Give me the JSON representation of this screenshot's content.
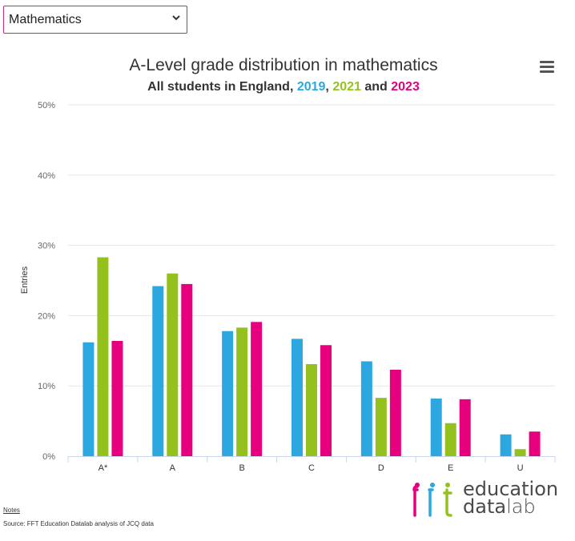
{
  "selector": {
    "value": "Mathematics",
    "icon": "chevron-down-icon"
  },
  "menu": {
    "icon": "hamburger-menu-icon"
  },
  "chart_data": {
    "type": "bar",
    "title": "A-Level grade distribution in mathematics",
    "subtitle": {
      "prefix": "All students in England, ",
      "sep1": ", ",
      "sep2": " and ",
      "years": [
        "2019",
        "2021",
        "2023"
      ]
    },
    "ylabel": "Entries",
    "xlabel": "",
    "ylim": [
      0,
      50
    ],
    "yticks": [
      0,
      10,
      20,
      30,
      40,
      50
    ],
    "ytick_labels": [
      "0%",
      "10%",
      "20%",
      "30%",
      "40%",
      "50%"
    ],
    "grid": true,
    "categories": [
      "A*",
      "A",
      "B",
      "C",
      "D",
      "E",
      "U"
    ],
    "series": [
      {
        "name": "2019",
        "color": "#2ca7df",
        "values": [
          16.2,
          24.2,
          17.8,
          16.7,
          13.5,
          8.2,
          3.1
        ]
      },
      {
        "name": "2021",
        "color": "#95c11f",
        "values": [
          28.3,
          26.0,
          18.3,
          13.1,
          8.3,
          4.7,
          1.0
        ]
      },
      {
        "name": "2023",
        "color": "#e6007e",
        "values": [
          16.4,
          24.5,
          19.1,
          15.8,
          12.3,
          8.1,
          3.5
        ]
      }
    ]
  },
  "footer": {
    "notes": "Notes",
    "source": "Source: FFT Education Datalab analysis of JCQ data"
  },
  "logo": {
    "mark": "fft",
    "line1": "education",
    "line2a": "data",
    "line2b": "lab"
  }
}
